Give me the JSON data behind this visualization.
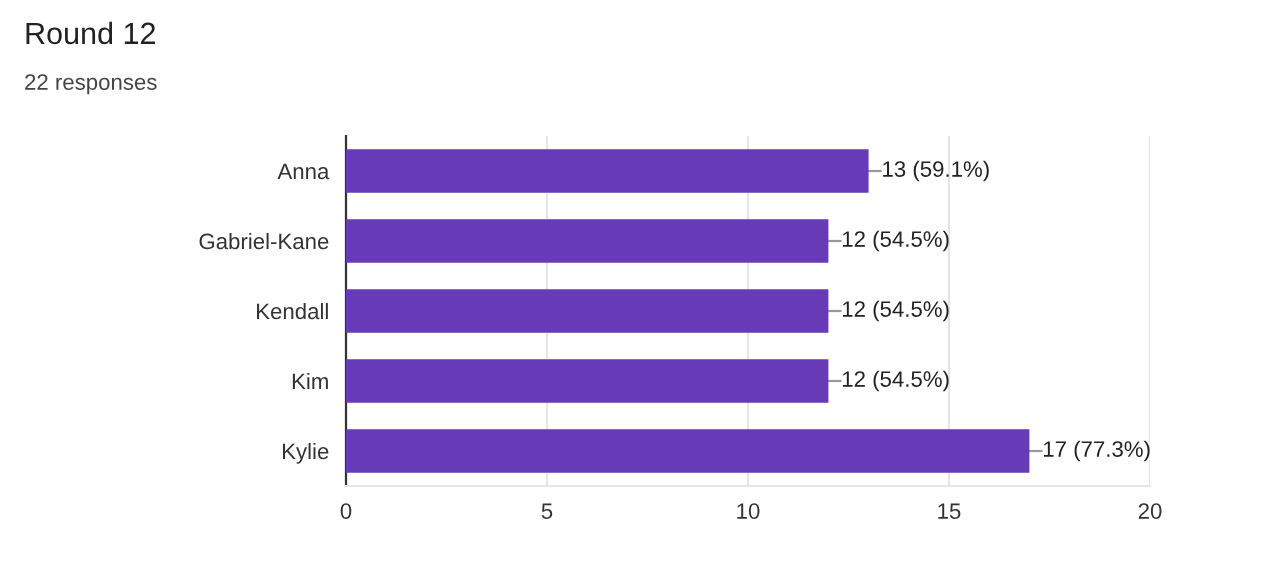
{
  "chart_data": {
    "type": "bar",
    "orientation": "horizontal",
    "title": "Round 12",
    "subtitle": "22 responses",
    "categories": [
      "Anna",
      "Gabriel-Kane",
      "Kendall",
      "Kim",
      "Kylie"
    ],
    "values": [
      13,
      12,
      12,
      12,
      17
    ],
    "color": "#673ab7",
    "value_labels": [
      "13 (59.1%)",
      "12 (54.5%)",
      "12 (54.5%)",
      "12 (54.5%)",
      "17 (77.3%)"
    ],
    "xlim": [
      0,
      20
    ],
    "xticks": [
      0,
      5,
      10,
      15,
      20
    ],
    "grid": "x"
  }
}
